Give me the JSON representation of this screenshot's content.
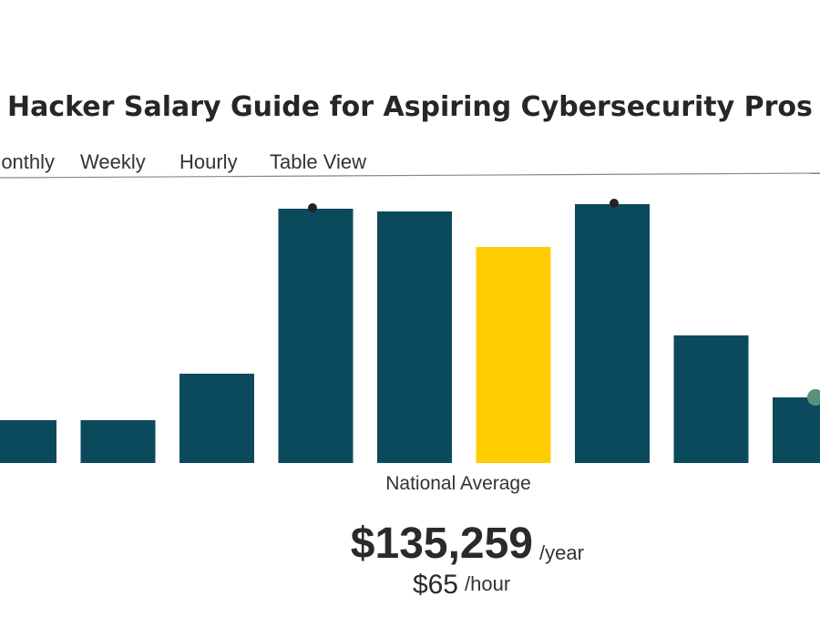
{
  "page": {
    "title": "Hacker Salary Guide for Aspiring Cybersecurity Pros",
    "tabs": [
      "Monthly",
      "Weekly",
      "Hourly",
      "Table View"
    ]
  },
  "chart_data": {
    "type": "bar",
    "values": [
      47,
      47,
      98,
      279,
      276,
      237,
      284,
      140,
      72
    ],
    "colors": [
      "#0b4a5c",
      "#0b4a5c",
      "#0b4a5c",
      "#0b4a5c",
      "#0b4a5c",
      "#ffcc00",
      "#0b4a5c",
      "#0b4a5c",
      "#0b4a5c"
    ],
    "ylim": [
      0,
      300
    ]
  },
  "summary": {
    "label": "National Average",
    "salary": "$135,259",
    "salary_unit": "/year",
    "hourly": "$65",
    "hourly_unit": "/hour"
  }
}
